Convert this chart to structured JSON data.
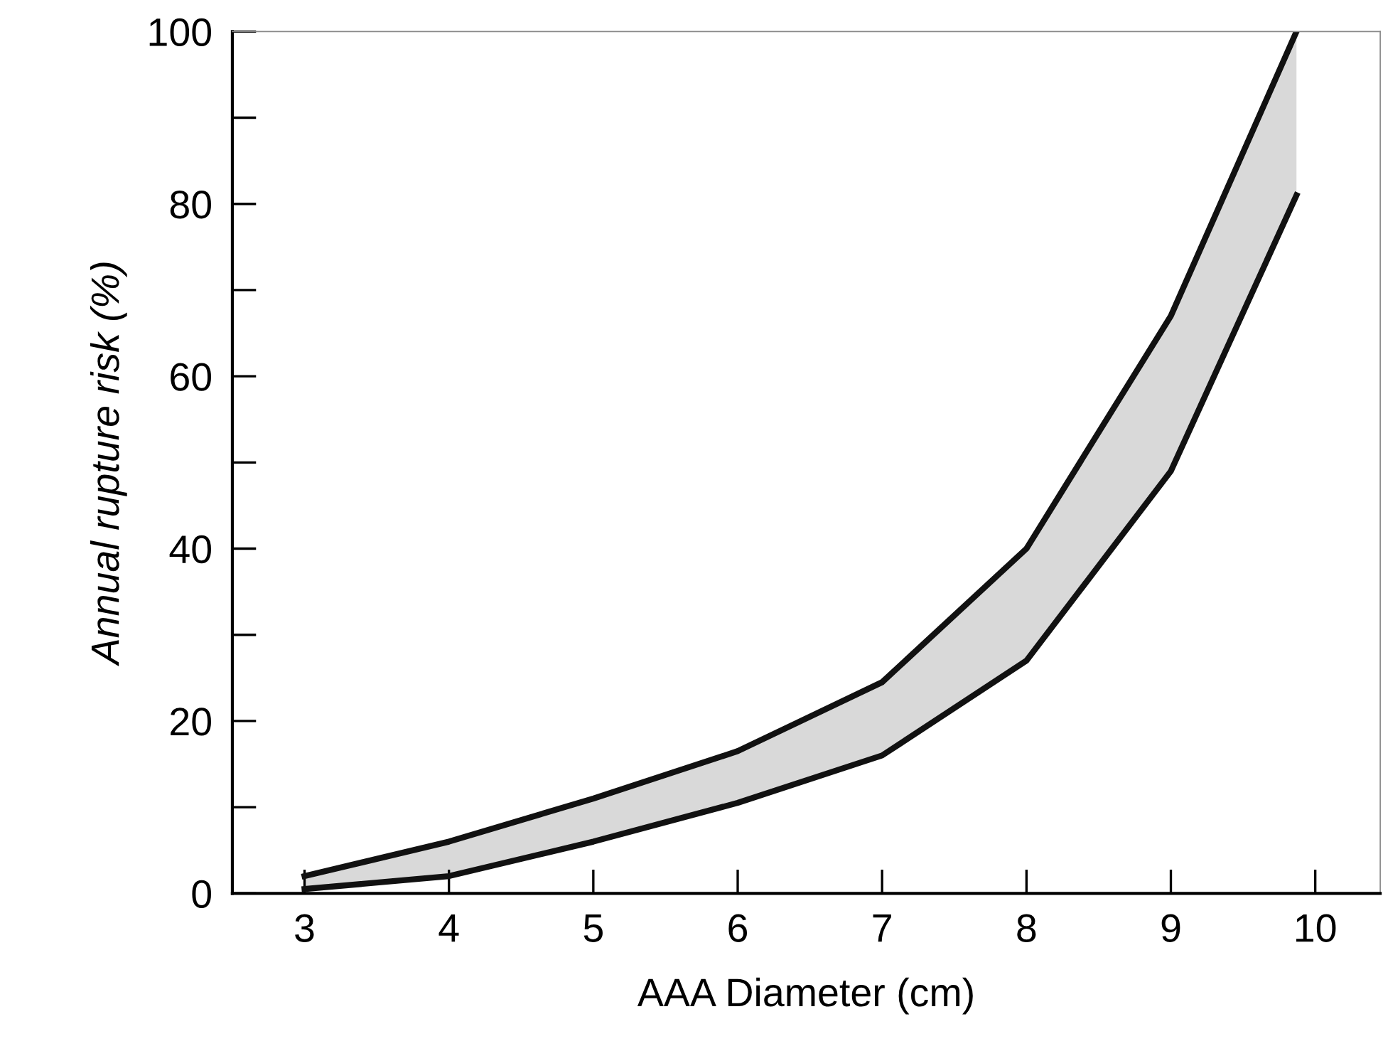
{
  "chart_data": {
    "type": "line",
    "xlabel": "AAA Diameter (cm)",
    "ylabel": "Annual rupture risk (%)",
    "x": [
      3,
      4,
      5,
      6,
      7,
      8,
      9,
      9.87
    ],
    "series": [
      {
        "color": "#111111",
        "values": [
          2,
          6,
          11,
          16.5,
          24.5,
          40,
          67,
          100
        ],
        "lower": [
          0.5,
          2,
          6,
          10.5,
          16,
          27,
          49,
          81
        ],
        "upper": [
          2,
          6,
          11,
          16.5,
          24.5,
          40,
          67,
          100
        ]
      },
      {
        "color": "#111111",
        "values": [
          0.5,
          2,
          6,
          10.5,
          16,
          27,
          49,
          81
        ]
      }
    ],
    "xlim": [
      2.5,
      10.45
    ],
    "ylim": [
      0,
      100
    ],
    "xticks": [
      3,
      4,
      5,
      6,
      7,
      8,
      9,
      10
    ],
    "yticks": [
      0,
      20,
      40,
      60,
      80,
      100
    ],
    "grid": false,
    "legend": false,
    "marker": "none",
    "line_style": "solid"
  }
}
